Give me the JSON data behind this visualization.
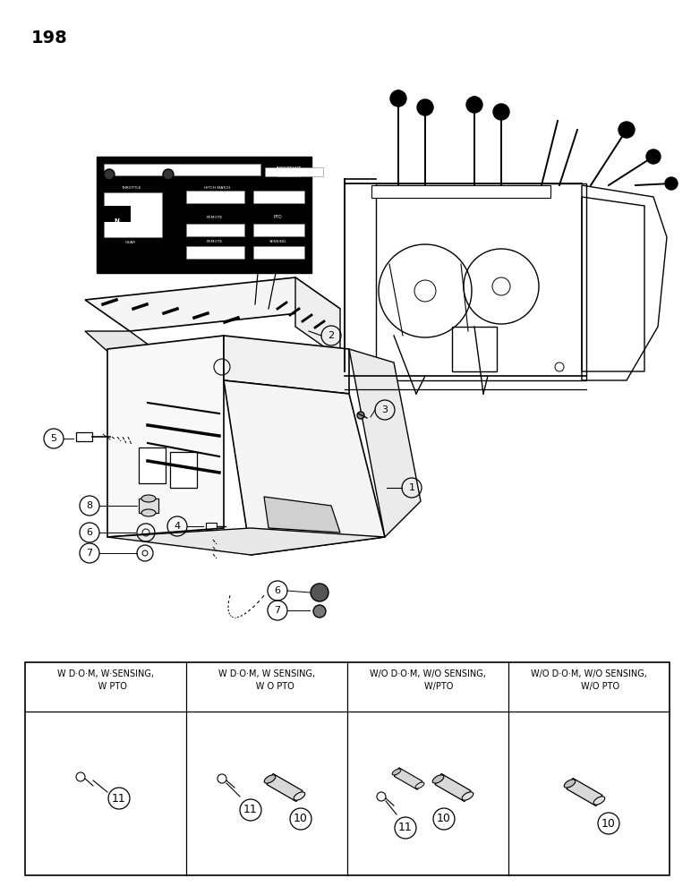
{
  "page_number": "198",
  "background_color": "#ffffff",
  "line_color": "#000000",
  "table_headers": [
    "W D·O·M, W·SENSING,\n     W PTO",
    "W D·O·M, W SENSING,\n      W O PTO",
    "W/O D·O·M, W/O SENSING,\n        W/PTO",
    "W/O D·O·M, W/O SENSING,\n        W/O PTO"
  ],
  "figsize": [
    7.72,
    10.0
  ],
  "dpi": 100
}
